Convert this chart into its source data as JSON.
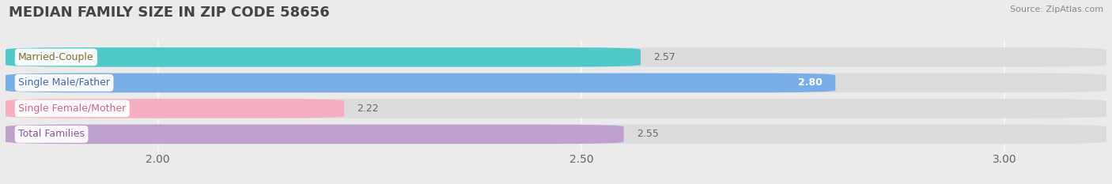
{
  "title": "MEDIAN FAMILY SIZE IN ZIP CODE 58656",
  "source": "Source: ZipAtlas.com",
  "categories": [
    "Married-Couple",
    "Single Male/Father",
    "Single Female/Mother",
    "Total Families"
  ],
  "values": [
    2.57,
    2.8,
    2.22,
    2.55
  ],
  "bar_colors": [
    "#4ec8c8",
    "#7aaee8",
    "#f5afc0",
    "#c0a0cc"
  ],
  "label_text_colors": [
    "#8a6a20",
    "#4466aa",
    "#cc6688",
    "#885599"
  ],
  "value_label_colors": [
    "#555555",
    "#ffffff",
    "#555555",
    "#555555"
  ],
  "xlim_min": 1.82,
  "xlim_max": 3.12,
  "xticks": [
    2.0,
    2.5,
    3.0
  ],
  "background_color": "#ebebeb",
  "bar_bg_color": "#dcdcdc",
  "title_fontsize": 13,
  "tick_fontsize": 10,
  "cat_fontsize": 9,
  "val_fontsize": 9
}
